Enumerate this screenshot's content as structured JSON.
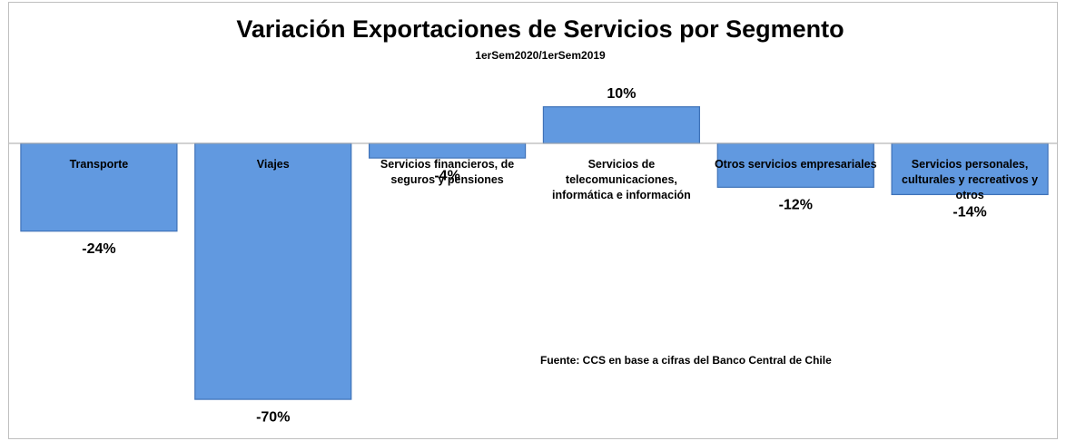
{
  "chart_data": {
    "type": "bar",
    "title": "Variación Exportaciones de Servicios por Segmento",
    "subtitle": "1erSem2020/1erSem2019",
    "source": "Fuente: CCS en base a cifras del Banco Central de Chile",
    "categories": [
      "Transporte",
      "Viajes",
      "Servicios financieros, de seguros y pensiones",
      "Servicios de telecomunicaciones, informática e información",
      "Otros servicios empresariales",
      "Servicios personales, culturales y recreativos y otros"
    ],
    "values": [
      -24,
      -70,
      -4,
      10,
      -12,
      -14
    ],
    "value_labels": [
      "-24%",
      "-70%",
      "-4%",
      "10%",
      "-12%",
      "-14%"
    ],
    "color": "#6199e0"
  }
}
